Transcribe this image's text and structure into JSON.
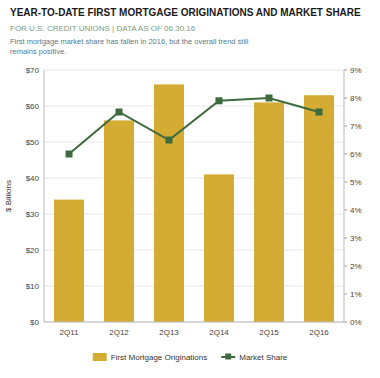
{
  "chart_data": {
    "type": "bar",
    "title": "YEAR-TO-DATE FIRST MORTGAGE ORIGINATIONS AND MARKET SHARE",
    "subtitle": "FOR U.S. CREDIT UNIONS  |  DATA AS OF 06.30.16",
    "description": "First mortgage market share has fallen in 2016, but the overall trend still\nremains positive.",
    "categories": [
      "2Q11",
      "2Q12",
      "2Q13",
      "2Q14",
      "2Q15",
      "2Q16"
    ],
    "series": [
      {
        "name": "First Mortgage Originations",
        "type": "bar",
        "color": "#D4AC34",
        "values": [
          34,
          56,
          66,
          41,
          61,
          63
        ]
      },
      {
        "name": "Market Share",
        "type": "line",
        "axis": "y2",
        "color": "#3D6B3D",
        "marker": "square",
        "values": [
          6.0,
          7.5,
          6.5,
          7.9,
          8.0,
          7.5
        ]
      }
    ],
    "ylabel": "$ Billions",
    "ylim": [
      0,
      70
    ],
    "yticks": [
      {
        "value": 0,
        "label": "$0"
      },
      {
        "value": 10,
        "label": "$10"
      },
      {
        "value": 20,
        "label": "$20"
      },
      {
        "value": 30,
        "label": "$30"
      },
      {
        "value": 40,
        "label": "$40"
      },
      {
        "value": 50,
        "label": "$50"
      },
      {
        "value": 60,
        "label": "$60"
      },
      {
        "value": 70,
        "label": "$70"
      }
    ],
    "y2lim": [
      0,
      9
    ],
    "y2ticks": [
      {
        "value": 0,
        "label": "0%"
      },
      {
        "value": 1,
        "label": "1%"
      },
      {
        "value": 2,
        "label": "2%"
      },
      {
        "value": 3,
        "label": "3%"
      },
      {
        "value": 4,
        "label": "4%"
      },
      {
        "value": 5,
        "label": "5%"
      },
      {
        "value": 6,
        "label": "6%"
      },
      {
        "value": 7,
        "label": "7%"
      },
      {
        "value": 8,
        "label": "8%"
      },
      {
        "value": 9,
        "label": "9%"
      }
    ],
    "grid": true,
    "legend": "bottom"
  }
}
